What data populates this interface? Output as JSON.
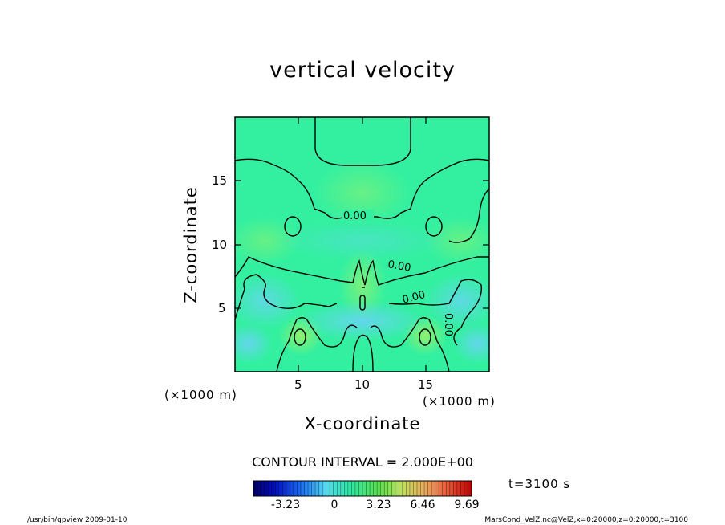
{
  "chart_data": {
    "type": "heatmap",
    "title": "vertical velocity",
    "xlabel": "X-coordinate",
    "ylabel": "Z-coordinate",
    "x_unit": "(×1000 m)",
    "z_unit": "(×1000 m)",
    "xlim": [
      0,
      20
    ],
    "ylim": [
      0,
      20
    ],
    "x_ticks": [
      "5",
      "10",
      "15"
    ],
    "y_ticks": [
      "5",
      "10",
      "15"
    ],
    "contour_labels": [
      "0.00",
      "0.00",
      "0.00",
      "0.00"
    ],
    "contour_interval": "CONTOUR INTERVAL = 2.000E+00",
    "colorbar_ticks": [
      "-3.23",
      "0",
      "3.23",
      "6.46",
      "9.69"
    ],
    "colorbar_range": [
      -6.46,
      12.92
    ],
    "time_label": "t=3100 s",
    "colors": {
      "background_field": "#33f0a0",
      "positive": "#9cf06a",
      "negative": "#7ad8ff"
    }
  },
  "footer": {
    "left": "/usr/bin/gpview   2009-01-10",
    "right": "MarsCond_VelZ.nc@VelZ,x=0:20000,z=0:20000,t=3100"
  }
}
